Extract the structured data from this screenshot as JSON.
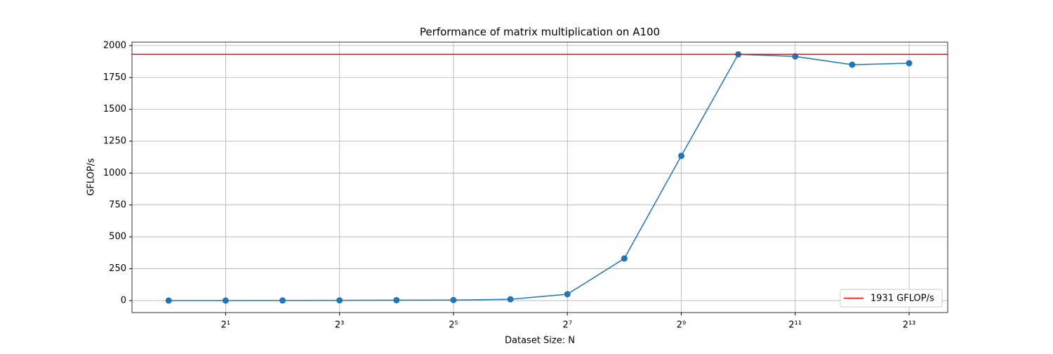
{
  "chart_data": {
    "type": "line",
    "title": "Performance of matrix multiplication on A100",
    "x_label": "Dataset Size: N",
    "y_label": "GFLOP/s",
    "x": [
      1,
      2,
      4,
      8,
      16,
      32,
      64,
      128,
      256,
      512,
      1024,
      2048,
      4096,
      8192
    ],
    "values": [
      0,
      0.3,
      1,
      2,
      3,
      4,
      10,
      50,
      330,
      1135,
      1931,
      1915,
      1850,
      1862
    ],
    "color": "#1f77b4",
    "reference_line": {
      "name": "1931 GFLOP/s",
      "color": "#ff0000",
      "value": 1931
    },
    "xscale": "log",
    "log_base": 2,
    "xlim": [
      0.64,
      13100
    ],
    "ylim": [
      -94,
      2027
    ],
    "xticks": [
      {
        "value": 2,
        "label": "2¹"
      },
      {
        "value": 8,
        "label": "2³"
      },
      {
        "value": 32,
        "label": "2⁵"
      },
      {
        "value": 128,
        "label": "2⁷"
      },
      {
        "value": 512,
        "label": "2⁹"
      },
      {
        "value": 2048,
        "label": "2¹¹"
      },
      {
        "value": 8192,
        "label": "2¹³"
      }
    ],
    "yticks": [
      0,
      250,
      500,
      750,
      1000,
      1250,
      1500,
      1750,
      2000
    ],
    "grid": true,
    "legend": "lower right"
  }
}
